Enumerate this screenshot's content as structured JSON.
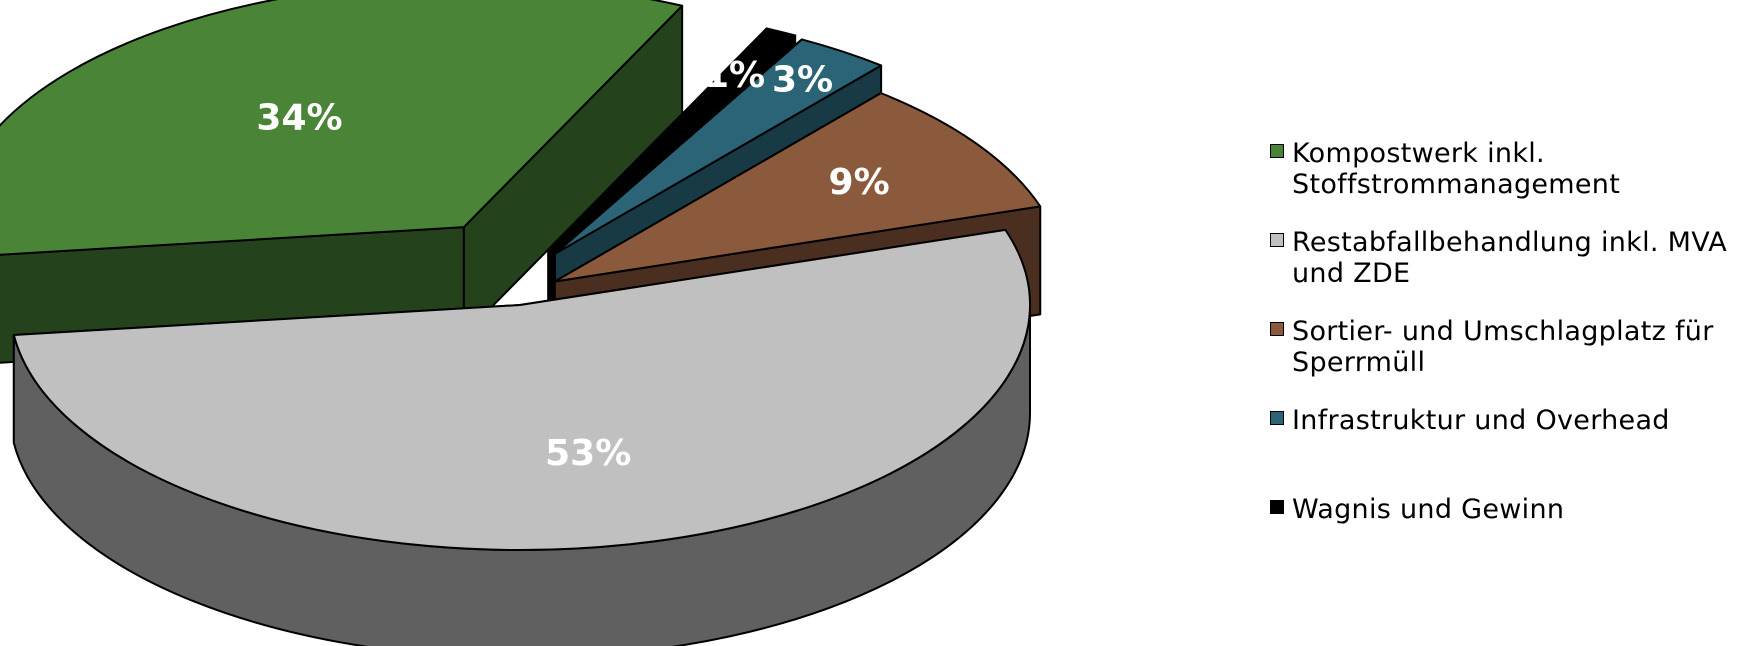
{
  "chart_data": {
    "type": "pie",
    "title": "",
    "slices": [
      {
        "label": "Kompostwerk inkl. Stoffstrommanagement",
        "value": 34,
        "value_label": "34%",
        "color": "#4a8537",
        "side_color": "#24431c"
      },
      {
        "label": "Restabfallbehandlung inkl. MVA und ZDE",
        "value": 53,
        "value_label": "53%",
        "color": "#c0c0c0",
        "side_color": "#606060"
      },
      {
        "label": "Sortier- und Umschlagplatz für Sperrmüll",
        "value": 9,
        "value_label": "9%",
        "color": "#8b5a3c",
        "side_color": "#4a2e20"
      },
      {
        "label": "Infrastruktur und Overhead",
        "value": 3,
        "value_label": "3%",
        "color": "#2a6476",
        "side_color": "#173a45"
      },
      {
        "label": "Wagnis und Gewinn",
        "value": 1,
        "value_label": "1%",
        "color": "#000000",
        "side_color": "#000000"
      }
    ],
    "legend_position": "right"
  }
}
